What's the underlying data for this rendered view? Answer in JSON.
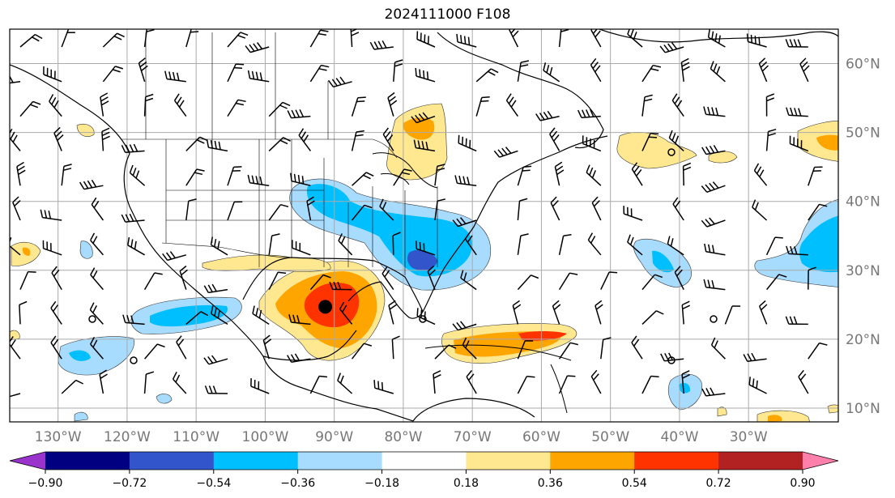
{
  "title": "2024111000 F108",
  "map": {
    "lon_labels": [
      "130°W",
      "120°W",
      "110°W",
      "100°W",
      "90°W",
      "80°W",
      "70°W",
      "60°W",
      "50°W",
      "40°W",
      "30°W"
    ],
    "lat_labels": [
      "60°N",
      "50°N",
      "40°N",
      "30°N",
      "20°N",
      "10°N"
    ],
    "lon_range": [
      -137,
      -17
    ],
    "lat_range": [
      8,
      65
    ],
    "gridlines": true,
    "storm_center": {
      "lon": -91.3,
      "lat": 24.7
    }
  },
  "colorbar": {
    "ticks": [
      "−0.90",
      "−0.72",
      "−0.54",
      "−0.36",
      "−0.18",
      "0.18",
      "0.36",
      "0.54",
      "0.72",
      "0.90"
    ],
    "colors": [
      "#9933cc",
      "#000080",
      "#3355cc",
      "#00bfff",
      "#a8dcff",
      "#ffffff",
      "#ffe890",
      "#ffa500",
      "#ff3300",
      "#b22222",
      "#ff80aa"
    ],
    "extend": "both"
  }
}
